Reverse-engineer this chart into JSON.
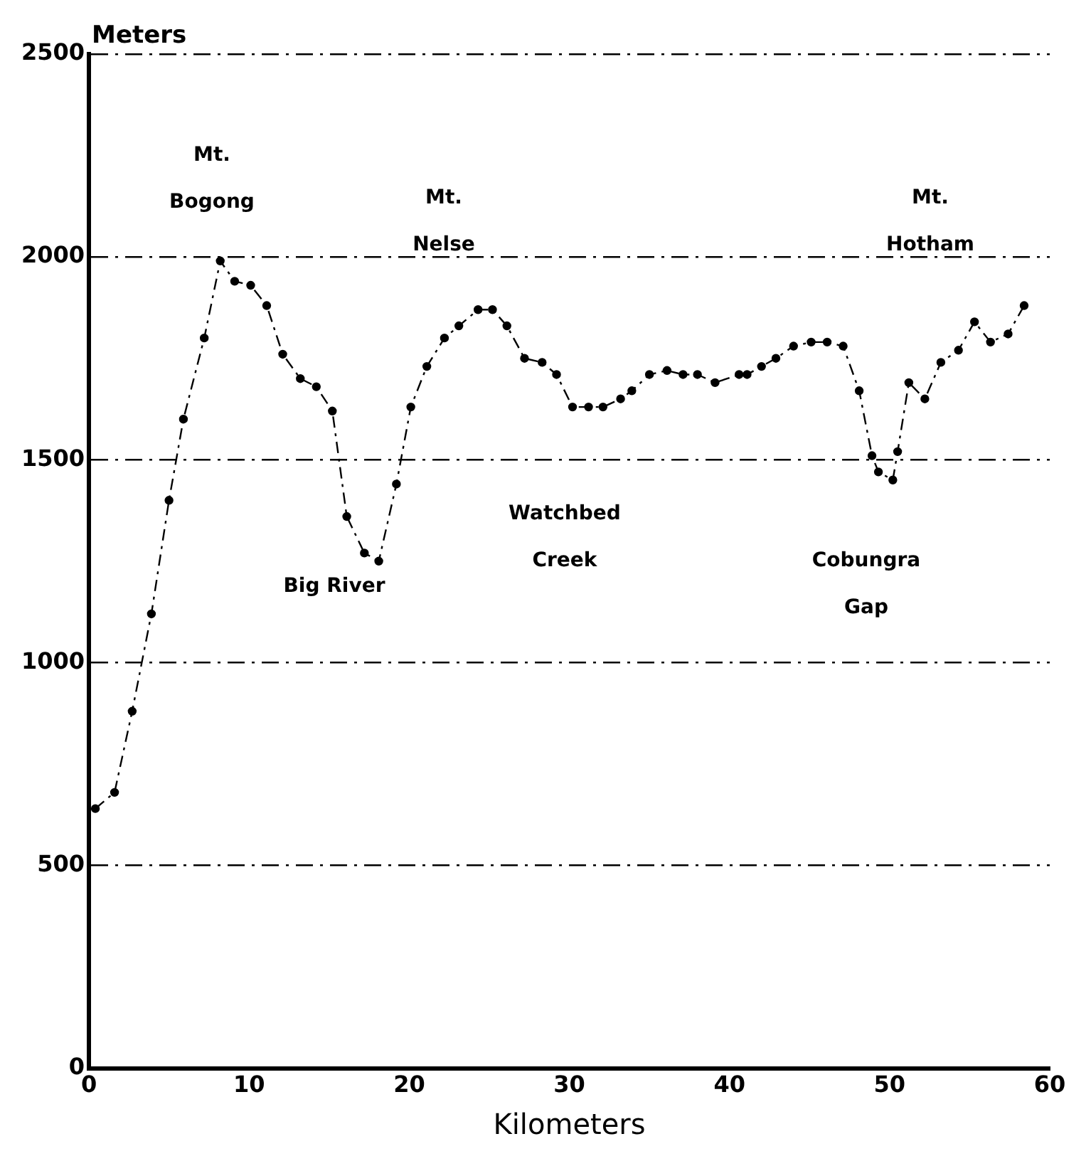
{
  "chart_data": {
    "type": "line",
    "xlabel": "Kilometers",
    "ylabel": "Meters",
    "xlim": [
      0,
      60
    ],
    "xticks": [
      0,
      10,
      20,
      30,
      40,
      50,
      60
    ],
    "ylim": [
      0,
      2500
    ],
    "yticks": [
      0,
      500,
      1000,
      1500,
      2000,
      2500
    ],
    "grid": "y",
    "marker": "circle",
    "line_style": "dashed",
    "legend": false,
    "series": [
      {
        "color": "#000000",
        "x": [
          0.4,
          1.6,
          2.7,
          3.9,
          5.0,
          5.9,
          7.2,
          8.2,
          9.1,
          10.1,
          11.1,
          12.1,
          13.2,
          14.2,
          15.2,
          16.1,
          17.2,
          18.1,
          19.2,
          20.1,
          21.1,
          22.2,
          23.1,
          24.3,
          25.2,
          26.1,
          27.2,
          28.3,
          29.2,
          30.2,
          31.2,
          32.1,
          33.2,
          33.9,
          35.0,
          36.1,
          37.1,
          38.0,
          39.1,
          40.6,
          41.1,
          42.0,
          42.9,
          44.0,
          45.1,
          46.1,
          47.1,
          48.1,
          48.9,
          49.3,
          50.2,
          50.5,
          51.2,
          52.2,
          53.2,
          54.3,
          55.3,
          56.3,
          57.4,
          58.4
        ],
        "values": [
          640,
          680,
          880,
          1120,
          1400,
          1600,
          1800,
          1990,
          1940,
          1930,
          1880,
          1760,
          1700,
          1680,
          1620,
          1360,
          1270,
          1250,
          1440,
          1630,
          1730,
          1800,
          1830,
          1870,
          1870,
          1830,
          1750,
          1740,
          1710,
          1630,
          1630,
          1630,
          1650,
          1670,
          1710,
          1720,
          1710,
          1710,
          1690,
          1710,
          1710,
          1730,
          1750,
          1780,
          1790,
          1790,
          1780,
          1670,
          1510,
          1470,
          1450,
          1520,
          1690,
          1650,
          1740,
          1770,
          1840,
          1790,
          1810,
          1880
        ]
      }
    ],
    "annotations": [
      "Mt. Bogong",
      "Mt. Nelse",
      "Mt. Hotham",
      "Big River",
      "Watchbed Creek",
      "Cobungra Gap"
    ]
  }
}
